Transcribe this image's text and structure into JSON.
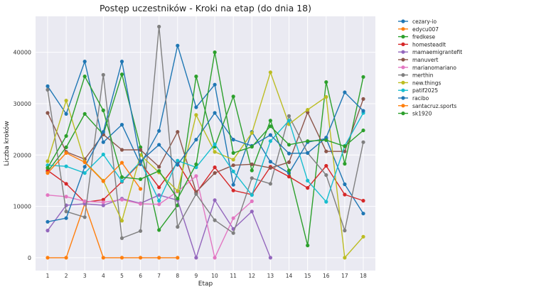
{
  "chart_data": {
    "type": "line",
    "title": "Postęp uczestników - Kroki na etap (do dnia 18)",
    "xlabel": "Etap",
    "ylabel": "Liczba kroków",
    "x": [
      1,
      2,
      3,
      4,
      5,
      6,
      7,
      8,
      9,
      10,
      11,
      12,
      13,
      14,
      15,
      16,
      17,
      18
    ],
    "ylim": [
      -2500,
      47000
    ],
    "yticks": [
      0,
      10000,
      20000,
      30000,
      40000
    ],
    "grid": true,
    "legend_position": "right-outside",
    "series": [
      {
        "name": "cezary-io",
        "color": "#1f77b4",
        "values": [
          33400,
          28000,
          38200,
          22500,
          25900,
          18200,
          24700,
          41300,
          29300,
          33700,
          14200,
          24500,
          18700,
          16500,
          22500,
          23200,
          14300,
          8600
        ]
      },
      {
        "name": "edycu007",
        "color": "#ff7f0e",
        "values": [
          0,
          0,
          10500,
          0,
          0,
          0,
          0,
          0,
          null,
          null,
          null,
          null,
          null,
          null,
          null,
          null,
          null,
          null
        ]
      },
      {
        "name": "fredkese",
        "color": "#2ca02c",
        "values": [
          16800,
          21500,
          28000,
          24000,
          35700,
          21500,
          5400,
          10200,
          35300,
          21600,
          31400,
          17000,
          26700,
          17000,
          2400,
          34200,
          18300,
          35200
        ]
      },
      {
        "name": "homesteadlt",
        "color": "#d62728",
        "values": [
          17000,
          14400,
          10800,
          11300,
          14800,
          18500,
          13700,
          18500,
          12600,
          17600,
          13100,
          12300,
          17700,
          15800,
          13600,
          17900,
          12300,
          11100
        ]
      },
      {
        "name": "mamaemigrantefit",
        "color": "#9467bd",
        "values": [
          5300,
          10200,
          10500,
          10200,
          11500,
          10600,
          12200,
          11200,
          0,
          11200,
          5600,
          9000,
          0,
          null,
          null,
          null,
          null,
          null
        ]
      },
      {
        "name": "manuvert",
        "color": "#8c564b",
        "values": [
          28200,
          20600,
          19200,
          24000,
          21000,
          21000,
          17700,
          24500,
          12800,
          16500,
          18000,
          18200,
          17500,
          18600,
          28300,
          20700,
          20700,
          30900
        ]
      },
      {
        "name": "marianomariano",
        "color": "#e377c2",
        "values": [
          12200,
          11900,
          11000,
          10800,
          11300,
          10500,
          10400,
          12900,
          15900,
          0,
          7700,
          11000,
          null,
          null,
          null,
          null,
          null,
          null
        ]
      },
      {
        "name": "merthin",
        "color": "#7f7f7f",
        "values": [
          32700,
          9000,
          7900,
          35600,
          3800,
          5200,
          45000,
          6000,
          12400,
          7300,
          4800,
          15500,
          14400,
          27600,
          20400,
          16100,
          5300,
          22500
        ]
      },
      {
        "name": "new.things",
        "color": "#bcbd22",
        "values": [
          18800,
          30600,
          18700,
          15000,
          7200,
          20000,
          16600,
          13000,
          27800,
          20600,
          19100,
          24300,
          36100,
          26000,
          28800,
          31300,
          0,
          4100
        ]
      },
      {
        "name": "patif2025",
        "color": "#17becf",
        "values": [
          18000,
          17800,
          16500,
          20100,
          14900,
          18700,
          11100,
          18900,
          17600,
          22100,
          16800,
          12200,
          22700,
          26700,
          15000,
          10900,
          21800,
          28200
        ]
      },
      {
        "name": "racibo",
        "color": "#1f77b4",
        "values": [
          7000,
          7700,
          17700,
          24500,
          38200,
          18800,
          22000,
          18100,
          23000,
          28200,
          23000,
          21800,
          23900,
          20300,
          20400,
          23400,
          32200,
          28600
        ]
      },
      {
        "name": "santacruz.sports",
        "color": "#ff7f0e",
        "values": [
          16500,
          20400,
          18600,
          14900,
          18500,
          13400,
          null,
          null,
          null,
          null,
          null,
          null,
          null,
          null,
          null,
          null,
          null,
          null
        ]
      },
      {
        "name": "sk1920",
        "color": "#2ca02c",
        "values": [
          17500,
          23700,
          35300,
          28700,
          15700,
          15300,
          16900,
          11500,
          18200,
          40000,
          20400,
          21600,
          25600,
          22000,
          22700,
          22900,
          21700,
          24800
        ]
      }
    ]
  }
}
